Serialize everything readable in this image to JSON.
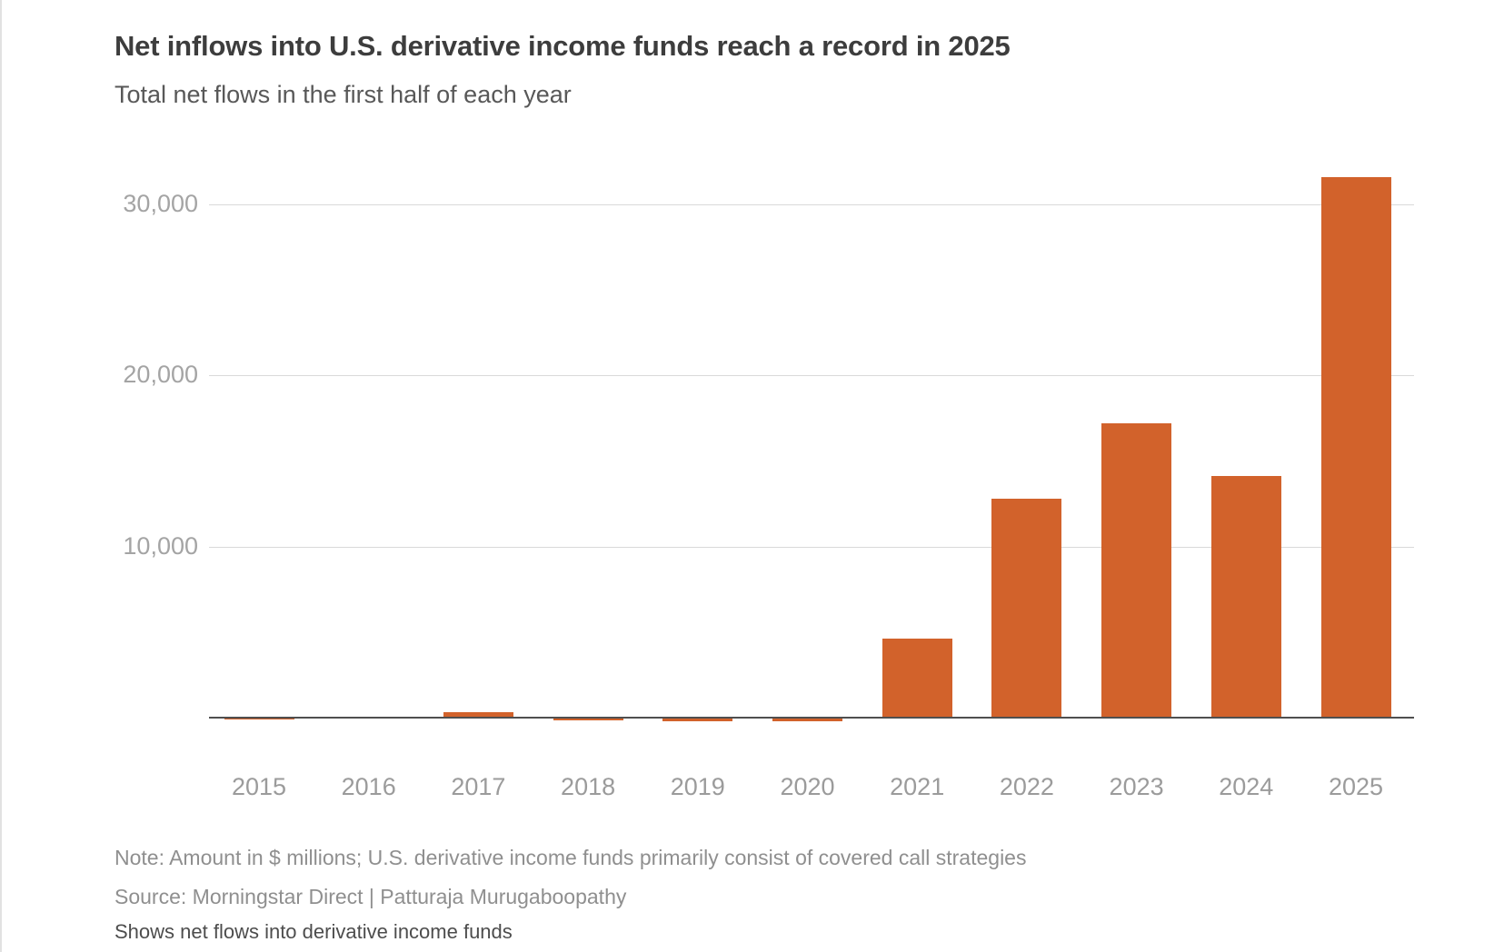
{
  "header": {
    "title": "Net inflows into U.S. derivative income funds reach a record in 2025",
    "subtitle": "Total net flows in the first half of each year"
  },
  "chart_data": {
    "type": "bar",
    "title": "Net inflows into U.S. derivative income funds reach a record in 2025",
    "subtitle": "Total net flows in the first half of each year",
    "categories": [
      "2015",
      "2016",
      "2017",
      "2018",
      "2019",
      "2020",
      "2021",
      "2022",
      "2023",
      "2024",
      "2025"
    ],
    "values": [
      -100,
      0,
      300,
      -150,
      -200,
      -200,
      4600,
      12800,
      17200,
      14100,
      31600
    ],
    "units": "$ millions",
    "xlabel": "",
    "ylabel": "",
    "y_ticks": [
      10000,
      20000,
      30000
    ],
    "y_tick_labels": [
      "10,000",
      "20,000",
      "30,000"
    ],
    "ylim": [
      -400,
      33500
    ],
    "grid": "horizontal-only",
    "legend": "none",
    "bar_color": "#d2622b",
    "gridline_color": "#d9d9d9",
    "axis_line_color": "#4f4f4f"
  },
  "footer": {
    "note": "Note: Amount in $ millions; U.S. derivative income funds primarily consist of covered call strategies",
    "source": "Source: Morningstar Direct | Patturaja Murugaboopathy",
    "caption": "Shows net flows into derivative income funds"
  }
}
